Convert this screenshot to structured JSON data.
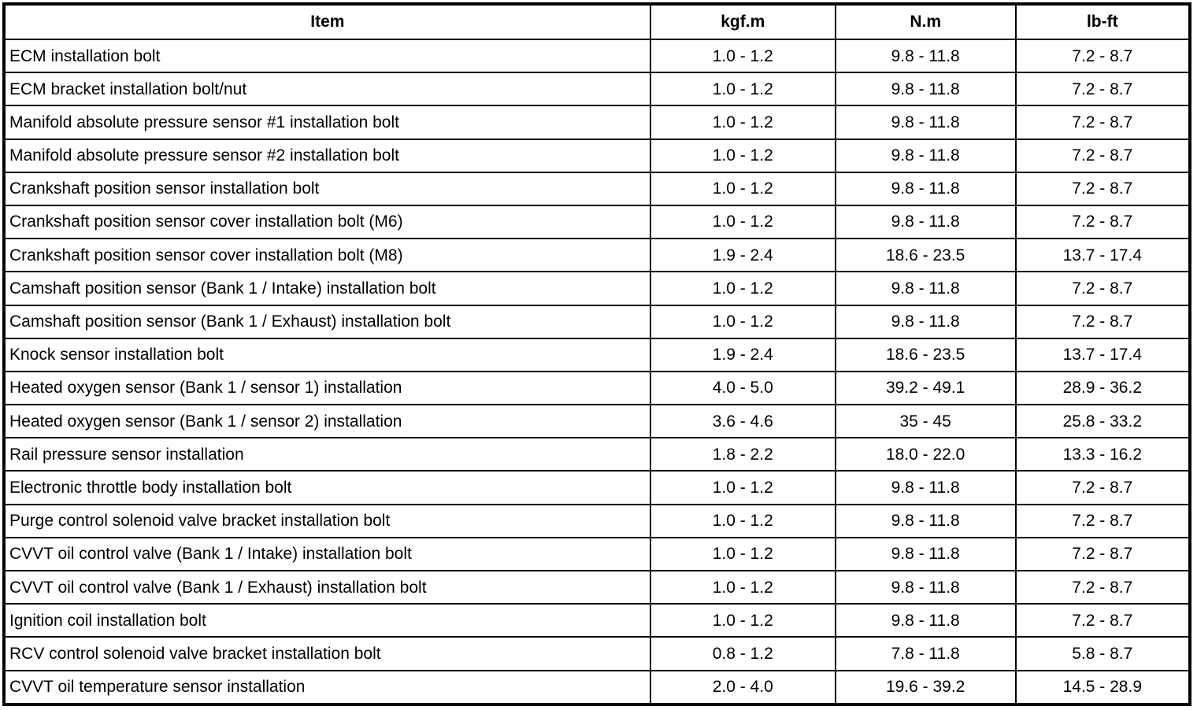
{
  "colors": {
    "background": "#ffffff",
    "border": "#000000",
    "text": "#000000"
  },
  "table": {
    "headers": [
      "Item",
      "kgf.m",
      "N.m",
      "lb-ft"
    ],
    "rows": [
      [
        "ECM installation bolt",
        "1.0 - 1.2",
        "9.8 - 11.8",
        "7.2 - 8.7"
      ],
      [
        "ECM bracket installation bolt/nut",
        "1.0 - 1.2",
        "9.8 - 11.8",
        "7.2 - 8.7"
      ],
      [
        "Manifold absolute pressure sensor #1 installation bolt",
        "1.0 - 1.2",
        "9.8 - 11.8",
        "7.2 - 8.7"
      ],
      [
        "Manifold absolute pressure sensor #2 installation bolt",
        "1.0 - 1.2",
        "9.8 - 11.8",
        "7.2 - 8.7"
      ],
      [
        "Crankshaft position sensor installation bolt",
        "1.0 - 1.2",
        "9.8 - 11.8",
        "7.2 - 8.7"
      ],
      [
        "Crankshaft position sensor cover installation bolt (M6)",
        "1.0 - 1.2",
        "9.8 - 11.8",
        "7.2 - 8.7"
      ],
      [
        "Crankshaft position sensor cover installation bolt (M8)",
        "1.9 - 2.4",
        "18.6 - 23.5",
        "13.7 - 17.4"
      ],
      [
        "Camshaft position sensor (Bank 1 / Intake) installation bolt",
        "1.0 - 1.2",
        "9.8 - 11.8",
        "7.2 - 8.7"
      ],
      [
        "Camshaft position sensor (Bank 1 / Exhaust) installation bolt",
        "1.0 - 1.2",
        "9.8 - 11.8",
        "7.2 - 8.7"
      ],
      [
        "Knock sensor installation bolt",
        "1.9 - 2.4",
        "18.6 - 23.5",
        "13.7 - 17.4"
      ],
      [
        "Heated oxygen sensor (Bank 1 / sensor 1) installation",
        "4.0 - 5.0",
        "39.2 - 49.1",
        "28.9 - 36.2"
      ],
      [
        "Heated oxygen sensor (Bank 1 / sensor 2) installation",
        "3.6 - 4.6",
        "35 - 45",
        "25.8 - 33.2"
      ],
      [
        "Rail pressure sensor installation",
        "1.8 - 2.2",
        "18.0 - 22.0",
        "13.3 - 16.2"
      ],
      [
        "Electronic throttle body installation bolt",
        "1.0 - 1.2",
        "9.8 - 11.8",
        "7.2 - 8.7"
      ],
      [
        "Purge control solenoid valve bracket installation bolt",
        "1.0 - 1.2",
        "9.8 - 11.8",
        "7.2 - 8.7"
      ],
      [
        "CVVT oil control valve (Bank 1 / Intake) installation bolt",
        "1.0 - 1.2",
        "9.8 - 11.8",
        "7.2 - 8.7"
      ],
      [
        "CVVT oil control valve (Bank 1 / Exhaust) installation bolt",
        "1.0 - 1.2",
        "9.8 - 11.8",
        "7.2 - 8.7"
      ],
      [
        "Ignition coil installation bolt",
        "1.0 - 1.2",
        "9.8 - 11.8",
        "7.2 - 8.7"
      ],
      [
        "RCV control solenoid valve bracket installation bolt",
        "0.8 - 1.2",
        "7.8 - 11.8",
        "5.8 - 8.7"
      ],
      [
        "CVVT oil temperature sensor installation",
        "2.0 - 4.0",
        "19.6 - 39.2",
        "14.5 - 28.9"
      ]
    ]
  }
}
